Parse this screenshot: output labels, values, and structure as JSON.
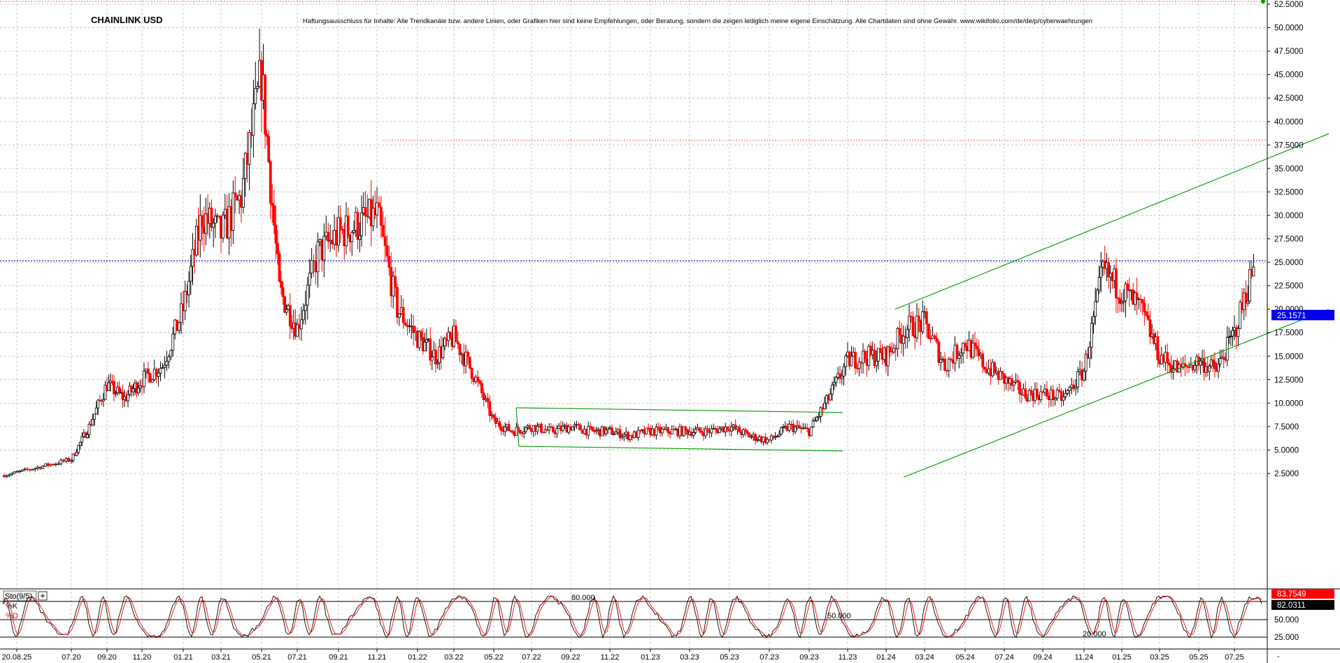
{
  "chart_data": {
    "type": "candlestick",
    "title": "CHAINLINK USD",
    "disclaimer": "Haftungsausschluss für Inhalte: Alle Trendkanäle bzw. andere Linien, oder Grafiken hier sind keine Empfehlungen, oder Beratung, sondern die zeigen lediglich meine eigene Einschätzung. Alle Chartdaten sind ohne Gewähr. www.wikifolio.com/de/de/p/cyberwaehrungen",
    "ylim": [
      1.5,
      52.5
    ],
    "y_ticks": [
      "52.5000",
      "50.0000",
      "47.5000",
      "45.0000",
      "42.5000",
      "40.0000",
      "37.5000",
      "35.0000",
      "32.5000",
      "30.0000",
      "27.5000",
      "25.0000",
      "22.5000",
      "20.0000",
      "17.5000",
      "15.0000",
      "12.5000",
      "10.0000",
      "7.5000",
      "5.0000",
      "2.5000"
    ],
    "x_ticks": [
      "20.08.25",
      "07.20",
      "09.20",
      "11.20",
      "01.21",
      "03.21",
      "05.21",
      "07.21",
      "09.21",
      "11.21",
      "01.22",
      "03.22",
      "05.22",
      "07.22",
      "09.22",
      "11.22",
      "01.23",
      "03.23",
      "05.23",
      "07.23",
      "09.23",
      "11.23",
      "01.24",
      "03.24",
      "05.24",
      "07.24",
      "09.24",
      "11.24",
      "01.25",
      "03.25",
      "05.25",
      "07.25"
    ],
    "grid": true,
    "current_price": "25.1571",
    "colors": {
      "up": "#000000",
      "down": "#ff0000",
      "current": "#0000cc",
      "trend": "#009900",
      "resistance": "#ff6666"
    },
    "series": [
      {
        "x": [
          "07.20",
          "08.20",
          "09.20",
          "10.20",
          "11.20",
          "12.20",
          "01.21",
          "02.21",
          "03.21",
          "04.21",
          "05.21",
          "06.21",
          "07.21",
          "08.21",
          "09.21",
          "10.21",
          "11.21",
          "12.21",
          "01.22",
          "02.22",
          "03.22",
          "04.22",
          "05.22",
          "06.22",
          "07.22",
          "08.22",
          "09.22",
          "10.22",
          "11.22",
          "12.22",
          "01.23",
          "02.23",
          "03.23",
          "04.23",
          "05.23",
          "06.23",
          "07.23",
          "08.23",
          "09.23",
          "10.23",
          "11.23",
          "12.23",
          "01.24",
          "02.24",
          "03.24",
          "04.24",
          "05.24",
          "06.24",
          "07.24",
          "08.24",
          "09.24",
          "10.24",
          "11.24",
          "12.24",
          "01.25",
          "02.25",
          "03.25",
          "04.25",
          "05.25",
          "06.25",
          "07.25",
          "08.25"
        ],
        "values": [
          4.0,
          7.5,
          12.0,
          10.5,
          12.5,
          14.0,
          20.0,
          30.0,
          28.0,
          32.0,
          45.0,
          22.0,
          18.0,
          26.0,
          28.0,
          29.0,
          30.0,
          20.0,
          17.0,
          15.0,
          17.0,
          13.0,
          8.0,
          7.0,
          7.5,
          7.0,
          7.5,
          7.0,
          7.0,
          6.5,
          7.0,
          7.0,
          7.0,
          7.0,
          7.5,
          6.5,
          6.0,
          7.5,
          7.0,
          10.5,
          14.5,
          15.0,
          15.0,
          18.0,
          18.5,
          14.0,
          16.5,
          14.0,
          12.5,
          11.0,
          11.0,
          10.5,
          13.5,
          24.0,
          22.0,
          20.0,
          15.0,
          13.5,
          14.5,
          13.5,
          17.5,
          24.5
        ]
      }
    ],
    "trend_lines": [
      {
        "name": "channel-2022-top",
        "from": [
          "06.22",
          9.5
        ],
        "to": [
          "11.23",
          9.0
        ]
      },
      {
        "name": "channel-2022-bottom",
        "from": [
          "06.22",
          5.4
        ],
        "to": [
          "11.23",
          4.9
        ]
      },
      {
        "name": "channel-up-top",
        "from": [
          "01.24",
          20.0
        ],
        "to": [
          "08.25+",
          38.7
        ]
      },
      {
        "name": "channel-up-bottom",
        "from": [
          "01.24",
          2.1
        ],
        "to": [
          "08.25+",
          20.0
        ]
      }
    ],
    "resistance_level": 38.0,
    "indicator": {
      "label": "Sto(9/5)",
      "k_label": "%K",
      "d_label": "%D",
      "k_value": "83.7549",
      "d_value": "82.0311",
      "levels": [
        "80.000",
        "50.000",
        "20.000"
      ],
      "ticks": [
        "50.000",
        "25.000"
      ]
    }
  }
}
